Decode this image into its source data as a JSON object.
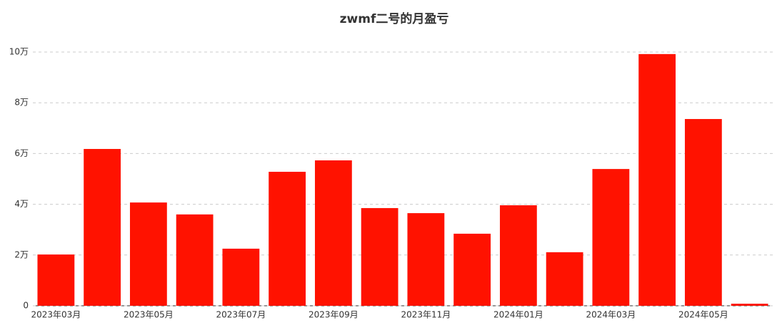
{
  "chart_data": {
    "type": "bar",
    "title": "zwmf二号的月盈亏",
    "categories": [
      "2023年03月",
      null,
      "2023年05月",
      null,
      "2023年07月",
      null,
      "2023年09月",
      null,
      "2023年11月",
      null,
      "2024年01月",
      null,
      "2024年03月",
      null,
      "2024年05月",
      null
    ],
    "values": [
      20200,
      61800,
      40700,
      36000,
      22500,
      52800,
      57300,
      38500,
      36500,
      28400,
      39600,
      21100,
      53900,
      99200,
      73600,
      800
    ],
    "color": "#ff1200",
    "ylim": [
      0,
      100000
    ],
    "yticks": [
      0,
      {
        "value": 20000,
        "label": "2万"
      },
      {
        "value": 40000,
        "label": "4万"
      },
      {
        "value": 60000,
        "label": "6万"
      },
      {
        "value": 80000,
        "label": "8万"
      },
      {
        "value": 100000,
        "label": "10万"
      }
    ],
    "grid": true
  }
}
